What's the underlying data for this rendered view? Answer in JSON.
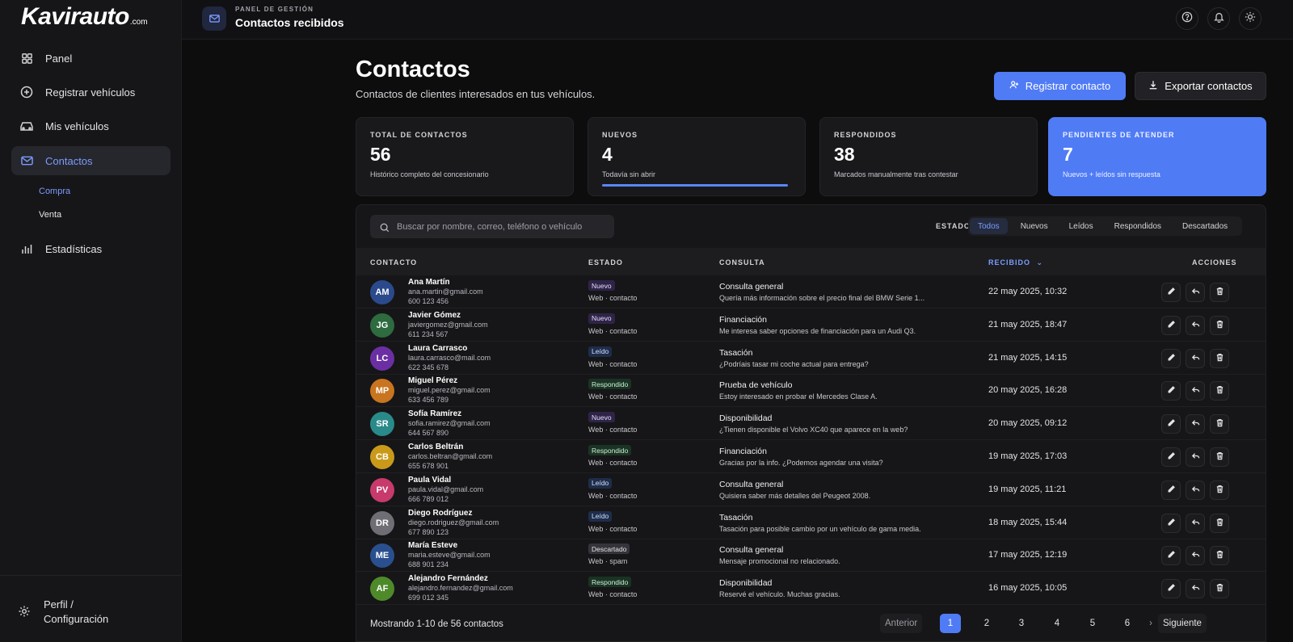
{
  "brand": {
    "logo": "Kavirauto",
    "logo_suffix": ".com"
  },
  "sidebar": {
    "items": [
      {
        "label": "Panel",
        "icon": "grid-icon"
      },
      {
        "label": "Registrar vehículos",
        "icon": "plus-circle-icon"
      },
      {
        "label": "Mis vehículos",
        "icon": "car-icon"
      },
      {
        "label": "Contactos",
        "icon": "mail-icon",
        "active": true
      },
      {
        "label": "Estadísticas",
        "icon": "bar-chart-icon"
      }
    ],
    "sub_items": [
      {
        "label": "Compra",
        "active": true
      },
      {
        "label": "Venta"
      }
    ],
    "profile_label": "Perfil / Configuración"
  },
  "header": {
    "kicker": "PANEL DE GESTIÓN",
    "title": "Contactos recibidos"
  },
  "page": {
    "title": "Contactos",
    "subtitle": "Contactos de clientes interesados en tus vehículos.",
    "register_button": "Registrar contacto",
    "export_button": "Exportar contactos"
  },
  "stats": [
    {
      "label": "TOTAL DE CONTACTOS",
      "value": "56",
      "desc": "Histórico completo del concesionario"
    },
    {
      "label": "NUEVOS",
      "value": "4",
      "desc": "Todavía sin abrir",
      "progress": 1.0
    },
    {
      "label": "RESPONDIDOS",
      "value": "38",
      "desc": "Marcados manualmente tras contestar"
    },
    {
      "label": "PENDIENTES DE ATENDER",
      "value": "7",
      "desc": "Nuevos + leídos sin respuesta"
    }
  ],
  "table": {
    "search_placeholder": "Buscar por nombre, correo, teléfono o vehículo",
    "filter_label": "ESTADO",
    "filters": [
      "Todos",
      "Nuevos",
      "Leídos",
      "Respondidos",
      "Descartados"
    ],
    "columns": {
      "contacto": "CONTACTO",
      "estado": "ESTADO",
      "consulta": "CONSULTA",
      "recibido": "RECIBIDO",
      "sort_icon": "⌄",
      "acciones": "ACCIONES"
    },
    "rows": [
      {
        "initials": "AM",
        "color": "#2b4a8c",
        "name": "Ana Martín",
        "email": "ana.martin@gmail.com",
        "phone": "600 123 456",
        "status": "Nuevo",
        "status_class": "b-nuevo",
        "channel": "Web · contacto",
        "q_title": "Consulta general",
        "q_text": "Quería más información sobre el precio final del BMW Serie 1...",
        "date": "22 may 2025, 10:32"
      },
      {
        "initials": "JG",
        "color": "#2e6b3f",
        "name": "Javier Gómez",
        "email": "javiergomez@gmail.com",
        "phone": "611 234 567",
        "status": "Nuevo",
        "status_class": "b-nuevo",
        "channel": "Web · contacto",
        "q_title": "Financiación",
        "q_text": "Me interesa saber opciones de financiación para un Audi Q3.",
        "date": "21 may 2025, 18:47"
      },
      {
        "initials": "LC",
        "color": "#6b2fa3",
        "name": "Laura Carrasco",
        "email": "laura.carrasco@mail.com",
        "phone": "622 345 678",
        "status": "Leído",
        "status_class": "b-leido",
        "channel": "Web · contacto",
        "q_title": "Tasación",
        "q_text": "¿Podríais tasar mi coche actual para entrega?",
        "date": "21 may 2025, 14:15"
      },
      {
        "initials": "MP",
        "color": "#c9741f",
        "name": "Miguel Pérez",
        "email": "miguel.perez@gmail.com",
        "phone": "633 456 789",
        "status": "Respondido",
        "status_class": "b-respondido",
        "channel": "Web · contacto",
        "q_title": "Prueba de vehículo",
        "q_text": "Estoy interesado en probar el Mercedes Clase A.",
        "date": "20 may 2025, 16:28"
      },
      {
        "initials": "SR",
        "color": "#2a8a8a",
        "name": "Sofía Ramírez",
        "email": "sofia.ramirez@gmail.com",
        "phone": "644 567 890",
        "status": "Nuevo",
        "status_class": "b-nuevo",
        "channel": "Web · contacto",
        "q_title": "Disponibilidad",
        "q_text": "¿Tienen disponible el Volvo XC40 que aparece en la web?",
        "date": "20 may 2025, 09:12"
      },
      {
        "initials": "CB",
        "color": "#c99a1a",
        "name": "Carlos Beltrán",
        "email": "carlos.beltran@gmail.com",
        "phone": "655 678 901",
        "status": "Respondido",
        "status_class": "b-respondido",
        "channel": "Web · contacto",
        "q_title": "Financiación",
        "q_text": "Gracias por la info. ¿Podemos agendar una visita?",
        "date": "19 may 2025, 17:03"
      },
      {
        "initials": "PV",
        "color": "#c73a6b",
        "name": "Paula Vidal",
        "email": "paula.vidal@gmail.com",
        "phone": "666 789 012",
        "status": "Leído",
        "status_class": "b-leido",
        "channel": "Web · contacto",
        "q_title": "Consulta general",
        "q_text": "Quisiera saber más detalles del Peugeot 2008.",
        "date": "19 may 2025, 11:21"
      },
      {
        "initials": "DR",
        "color": "#6e6e74",
        "name": "Diego Rodríguez",
        "email": "diego.rodriguez@gmail.com",
        "phone": "677 890 123",
        "status": "Leído",
        "status_class": "b-leido",
        "channel": "Web · contacto",
        "q_title": "Tasación",
        "q_text": "Tasación para posible cambio por un vehículo de gama media.",
        "date": "18 may 2025, 15:44"
      },
      {
        "initials": "ME",
        "color": "#2a4f8f",
        "name": "María Esteve",
        "email": "maria.esteve@gmail.com",
        "phone": "688 901 234",
        "status": "Descartado",
        "status_class": "b-descartado",
        "channel": "Web · spam",
        "q_title": "Consulta general",
        "q_text": "Mensaje promocional no relacionado.",
        "date": "17 may 2025, 12:19"
      },
      {
        "initials": "AF",
        "color": "#4e8a2a",
        "name": "Alejandro Fernández",
        "email": "alejandro.fernandez@gmail.com",
        "phone": "699 012 345",
        "status": "Respondido",
        "status_class": "b-respondido",
        "channel": "Web · contacto",
        "q_title": "Disponibilidad",
        "q_text": "Reservé el vehículo. Muchas gracias.",
        "date": "16 may 2025, 10:05"
      }
    ]
  },
  "pagination": {
    "summary": "Mostrando 1-10 de 56 contactos",
    "prev": "Anterior",
    "pages": [
      "1",
      "2",
      "3",
      "4",
      "5",
      "6"
    ],
    "current": "1",
    "more_icon": "›",
    "next": "Siguiente"
  },
  "colors": {
    "accent": "#4f7bf5",
    "sidebar_bg": "#161618",
    "page_bg": "#0d0d0e"
  }
}
